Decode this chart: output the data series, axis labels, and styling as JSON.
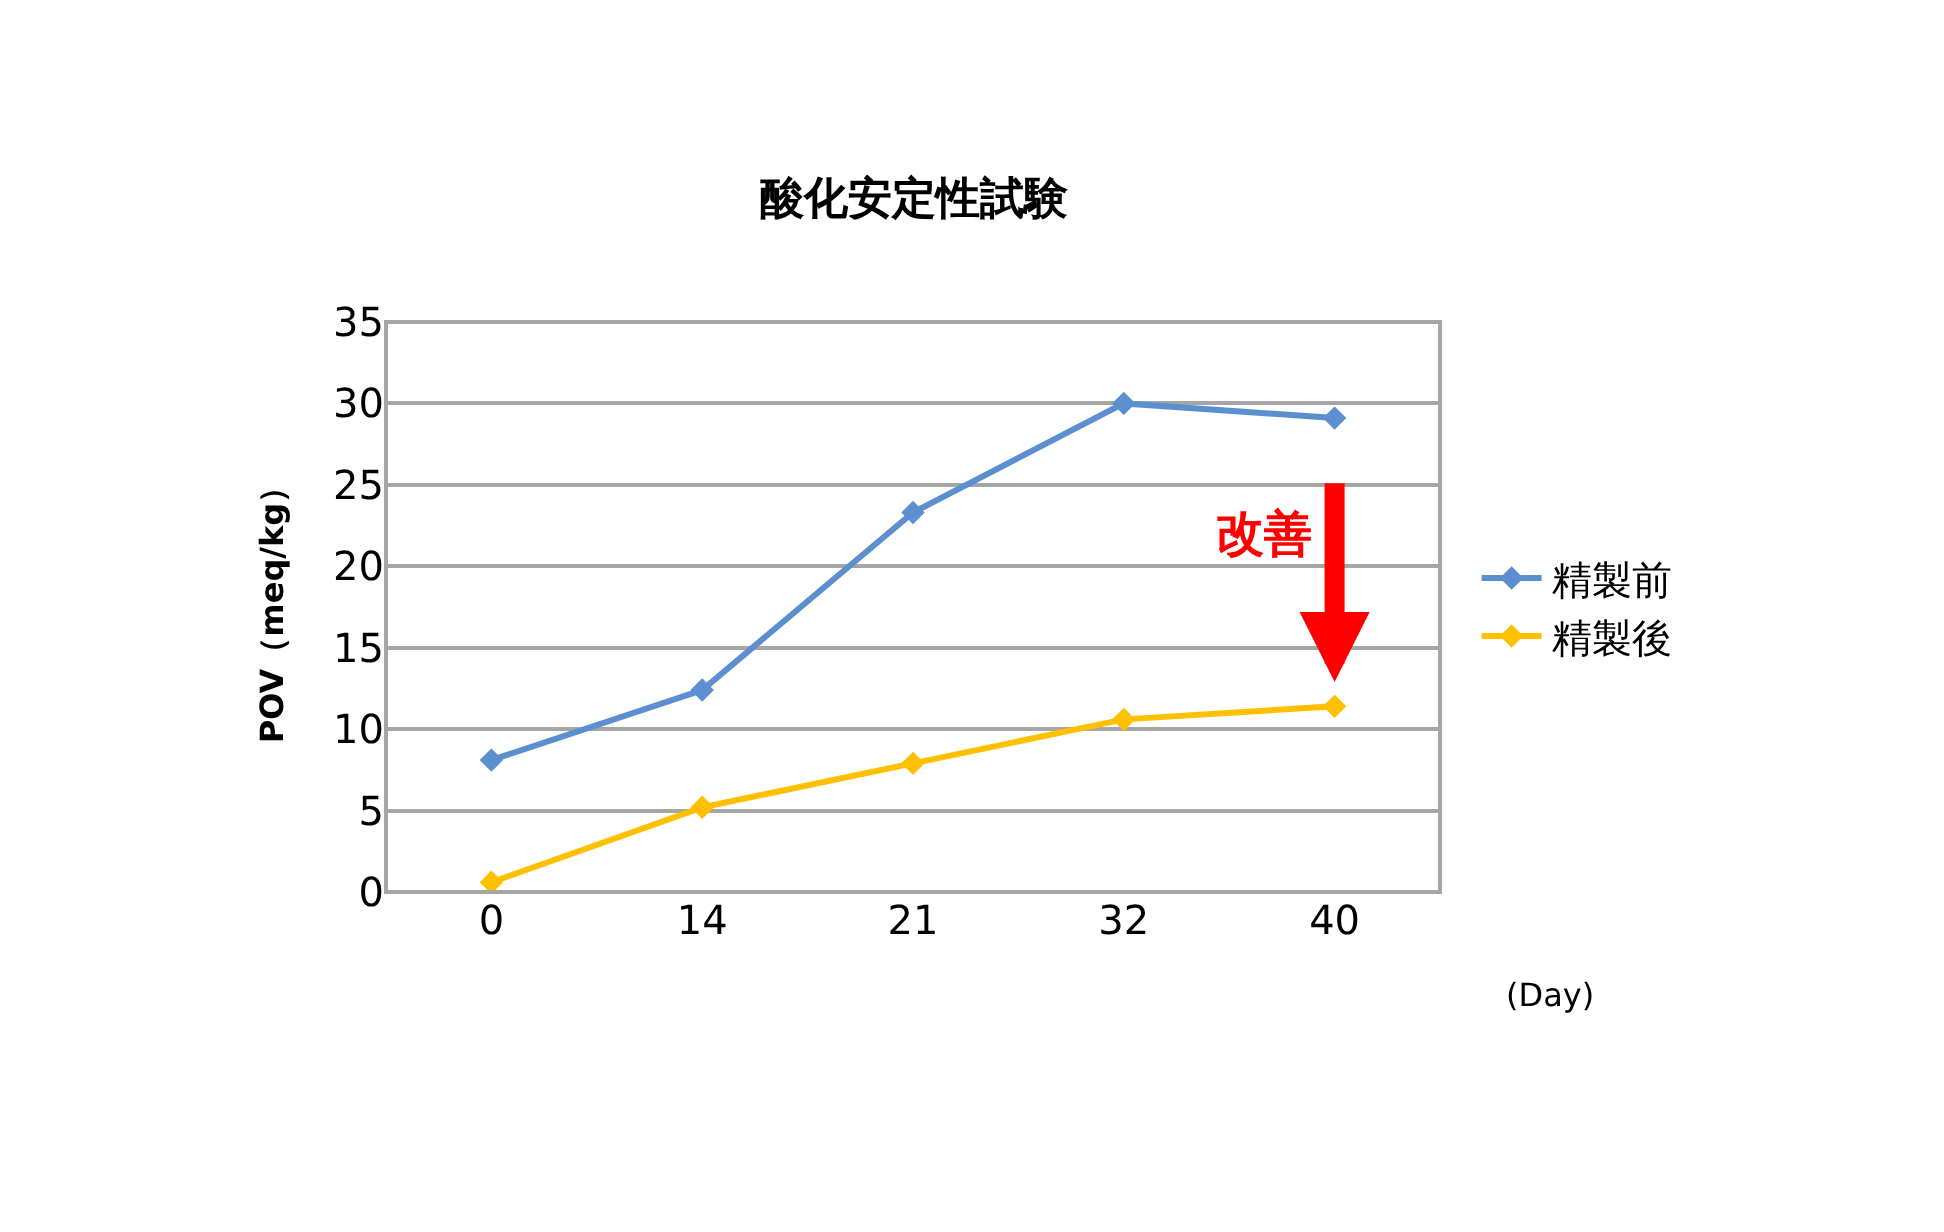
{
  "chart_data": {
    "type": "line",
    "title": "酸化安定性試験",
    "ylabel": "POV（meq/kg）",
    "xlabel": "(Day)",
    "categories": [
      "0",
      "14",
      "21",
      "32",
      "40"
    ],
    "series": [
      {
        "name": "精製前",
        "color": "#5b8fd0",
        "values": [
          8.1,
          12.4,
          23.3,
          30.0,
          29.1
        ]
      },
      {
        "name": "精製後",
        "color": "#ffc000",
        "values": [
          0.6,
          5.2,
          7.9,
          10.6,
          11.4
        ]
      }
    ],
    "ylim": [
      0,
      35
    ],
    "yticks": [
      0,
      5,
      10,
      15,
      20,
      25,
      30,
      35
    ],
    "grid": "y",
    "legend": "right",
    "marker": "diamond",
    "line_style": "solid",
    "annotations": [
      "改善"
    ]
  }
}
